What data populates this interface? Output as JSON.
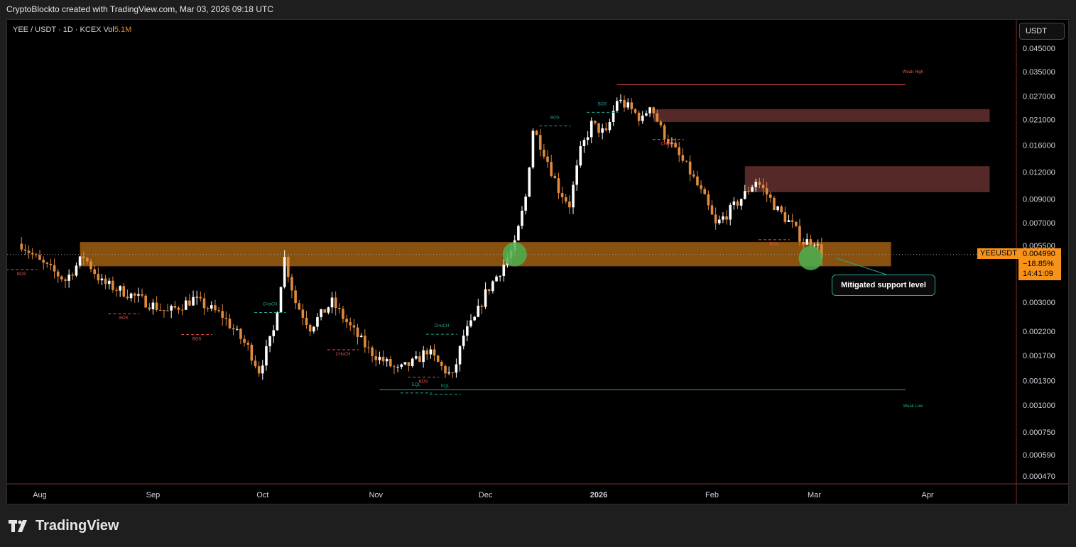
{
  "header": {
    "attribution": "CryptoBlockto created with TradingView.com, Mar 03, 2026 09:18 UTC"
  },
  "legend": {
    "symbol": "YEE / USDT · 1D · KCEX",
    "vol_label": "Vol",
    "vol_value": "5.1M"
  },
  "currency_button": "USDT",
  "current": {
    "symbol": "YEEUSDT",
    "price": "0.004990",
    "change": "−18.85%",
    "countdown": "14:41:09"
  },
  "annotation": {
    "callout": "Mitigated support level"
  },
  "brand": {
    "name": "TradingView",
    "icon": "tradingview-logo-icon"
  },
  "colors": {
    "background": "#000000",
    "up": "#ffffff",
    "down": "#e08a3c",
    "support_zone": "#f7931a",
    "supply_zone": "#7a3a3a",
    "bull_structure": "#26a69a",
    "bear_structure": "#ef5350",
    "highlight_circle": "#4caf50",
    "price_tag": "#f7931a"
  },
  "chart_data": {
    "type": "candlestick",
    "y_scale": "log",
    "y_ticks": [
      "0.045000",
      "0.035000",
      "0.027000",
      "0.021000",
      "0.016000",
      "0.012000",
      "0.009000",
      "0.007000",
      "0.005500",
      "0.003000",
      "0.002200",
      "0.001700",
      "0.001300",
      "0.001000",
      "0.000750",
      "0.000590",
      "0.000470"
    ],
    "x_ticks": [
      "Aug",
      "Sep",
      "Oct",
      "Nov",
      "Dec",
      "2026",
      "Feb",
      "Mar",
      "Apr"
    ],
    "x_tick_dates": [
      "2025-08-01",
      "2025-09-01",
      "2025-10-01",
      "2025-11-01",
      "2025-12-01",
      "2026-01-01",
      "2026-02-01",
      "2026-03-01",
      "2026-04-01"
    ],
    "ohlc_keypoints": [
      [
        "2025-07-27",
        0.0056
      ],
      [
        "2025-08-01",
        0.0046
      ],
      [
        "2025-08-08",
        0.0038
      ],
      [
        "2025-08-13",
        0.0049
      ],
      [
        "2025-08-18",
        0.0037
      ],
      [
        "2025-08-25",
        0.0033
      ],
      [
        "2025-09-05",
        0.0027
      ],
      [
        "2025-09-12",
        0.0031
      ],
      [
        "2025-09-20",
        0.0026
      ],
      [
        "2025-09-27",
        0.00185
      ],
      [
        "2025-09-30",
        0.00145
      ],
      [
        "2025-10-04",
        0.0022
      ],
      [
        "2025-10-07",
        0.0048
      ],
      [
        "2025-10-10",
        0.003
      ],
      [
        "2025-10-14",
        0.0023
      ],
      [
        "2025-10-20",
        0.003
      ],
      [
        "2025-10-25",
        0.0023
      ],
      [
        "2025-10-30",
        0.0018
      ],
      [
        "2025-11-02",
        0.00165
      ],
      [
        "2025-11-07",
        0.00145
      ],
      [
        "2025-11-12",
        0.0016
      ],
      [
        "2025-11-15",
        0.0018
      ],
      [
        "2025-11-19",
        0.0015
      ],
      [
        "2025-11-22",
        0.00135
      ],
      [
        "2025-11-25",
        0.0021
      ],
      [
        "2025-11-28",
        0.0025
      ],
      [
        "2025-12-01",
        0.0033
      ],
      [
        "2025-12-05",
        0.0042
      ],
      [
        "2025-12-09",
        0.0055
      ],
      [
        "2025-12-12",
        0.0092
      ],
      [
        "2025-12-14",
        0.019
      ],
      [
        "2025-12-17",
        0.015
      ],
      [
        "2025-12-21",
        0.01
      ],
      [
        "2025-12-24",
        0.0085
      ],
      [
        "2025-12-27",
        0.015
      ],
      [
        "2025-12-30",
        0.02
      ],
      [
        "2026-01-03",
        0.018
      ],
      [
        "2026-01-06",
        0.026
      ],
      [
        "2026-01-09",
        0.024
      ],
      [
        "2026-01-13",
        0.021
      ],
      [
        "2026-01-15",
        0.025
      ],
      [
        "2026-01-18",
        0.019
      ],
      [
        "2026-01-22",
        0.015
      ],
      [
        "2026-01-26",
        0.012
      ],
      [
        "2026-01-30",
        0.009
      ],
      [
        "2026-02-02",
        0.0068
      ],
      [
        "2026-02-06",
        0.008
      ],
      [
        "2026-02-10",
        0.0095
      ],
      [
        "2026-02-13",
        0.011
      ],
      [
        "2026-02-16",
        0.0095
      ],
      [
        "2026-02-19",
        0.008
      ],
      [
        "2026-02-23",
        0.0068
      ],
      [
        "2026-02-26",
        0.0057
      ],
      [
        "2026-03-01",
        0.0058
      ],
      [
        "2026-03-03",
        0.005
      ]
    ],
    "zones": [
      {
        "label": "support",
        "from": "2025-08-12",
        "to": "2026-03-22",
        "top": 0.0057,
        "bottom": 0.0044
      },
      {
        "label": "supply-upper",
        "from": "2026-01-16",
        "to": "2026-04-18",
        "top": 0.0235,
        "bottom": 0.0205
      },
      {
        "label": "supply-lower",
        "from": "2026-02-10",
        "to": "2026-04-18",
        "top": 0.0128,
        "bottom": 0.0097
      }
    ],
    "structure_labels": [
      {
        "text": "BOS",
        "date": "2025-07-27",
        "price": 0.004,
        "side": "bear"
      },
      {
        "text": "BOS",
        "date": "2025-08-24",
        "price": 0.0025,
        "side": "bear"
      },
      {
        "text": "BOS",
        "date": "2025-09-13",
        "price": 0.002,
        "side": "bear"
      },
      {
        "text": "CHoCH",
        "date": "2025-10-03",
        "price": 0.0029,
        "side": "bull"
      },
      {
        "text": "CHoCH",
        "date": "2025-10-23",
        "price": 0.0017,
        "side": "bear"
      },
      {
        "text": "CHoCH",
        "date": "2025-11-19",
        "price": 0.0023,
        "side": "bull"
      },
      {
        "text": "BOS",
        "date": "2025-11-14",
        "price": 0.00127,
        "side": "bear"
      },
      {
        "text": "EQL",
        "date": "2025-11-12",
        "price": 0.00123,
        "side": "bull"
      },
      {
        "text": "EQL",
        "date": "2025-11-20",
        "price": 0.00121,
        "side": "bull"
      },
      {
        "text": "BOS",
        "date": "2025-12-20",
        "price": 0.0212,
        "side": "bull"
      },
      {
        "text": "BOS",
        "date": "2026-01-02",
        "price": 0.0245,
        "side": "bull"
      },
      {
        "text": "CHoCH",
        "date": "2026-01-20",
        "price": 0.016,
        "side": "bear"
      },
      {
        "text": "BOS",
        "date": "2026-02-18",
        "price": 0.0055,
        "side": "bear"
      },
      {
        "text": "Weak High",
        "date": "2026-03-28",
        "price": 0.0345,
        "side": "bear"
      },
      {
        "text": "Weak Low",
        "date": "2026-03-28",
        "price": 0.00098,
        "side": "bull"
      }
    ],
    "levels": {
      "weak_high": {
        "price": 0.0305,
        "from": "2026-01-06",
        "to": "2026-03-26"
      },
      "weak_low": {
        "price": 0.00118,
        "from": "2025-11-02",
        "to": "2026-03-26"
      }
    },
    "highlight_points": [
      {
        "date": "2025-12-09",
        "price": 0.005
      },
      {
        "date": "2026-02-28",
        "price": 0.0048
      }
    ],
    "last_price": 0.00499
  }
}
